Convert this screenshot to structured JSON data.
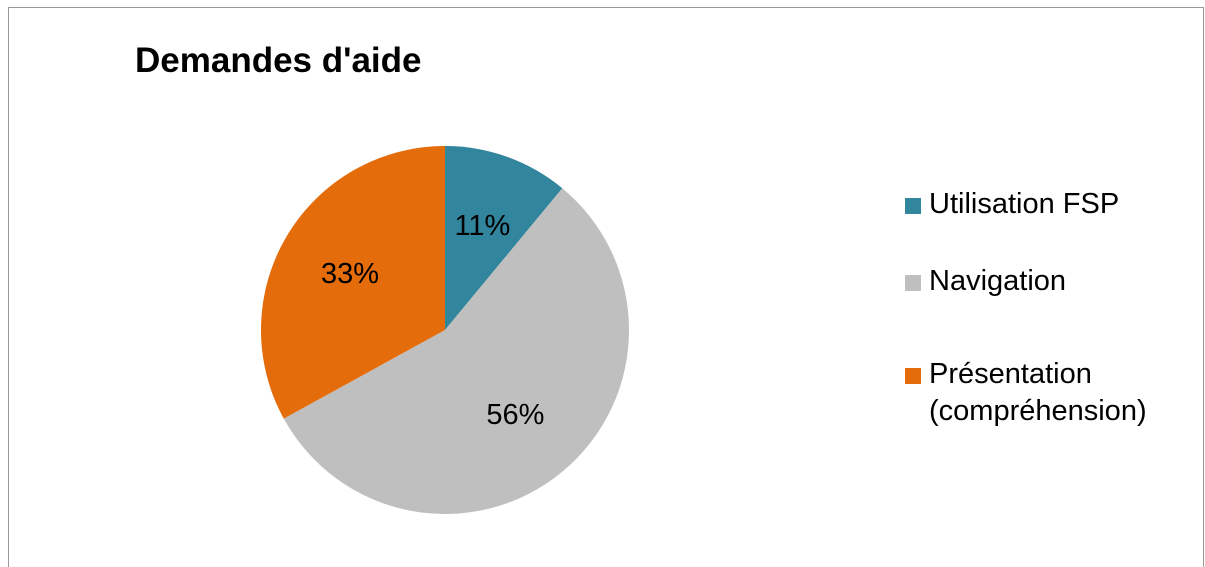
{
  "chart_data": {
    "type": "pie",
    "title": "Demandes d'aide",
    "slices": [
      {
        "name": "Utilisation FSP",
        "value": 11,
        "label": "11%",
        "color": "#31859c"
      },
      {
        "name": "Navigation",
        "value": 56,
        "label": "56%",
        "color": "#bfbfbf"
      },
      {
        "name": "Présentation (compréhension)",
        "value": 33,
        "label": "33%",
        "color": "#e46c0a"
      }
    ],
    "legend_position": "right"
  }
}
